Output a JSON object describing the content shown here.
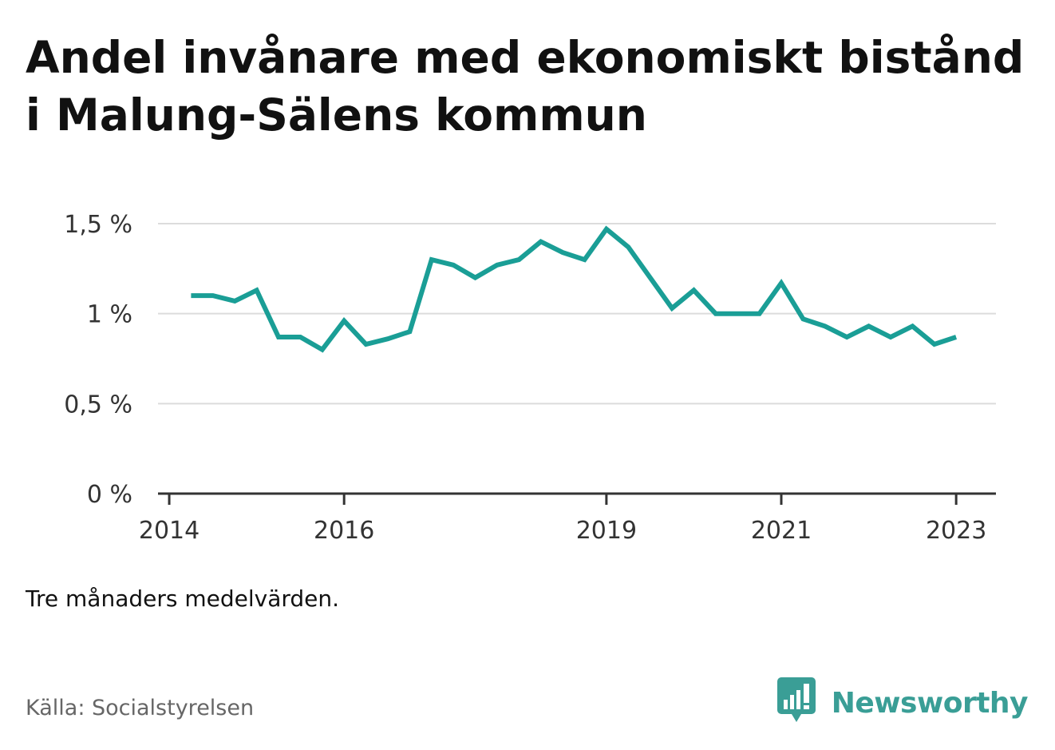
{
  "title": "Andel invånare med ekonomiskt bistånd i Malung-Sälens kommun",
  "note": "Tre månaders medelvärden.",
  "source": "Källa: Socialstyrelsen",
  "brand": {
    "name": "Newsworthy",
    "icon": "newsworthy-logo-icon",
    "color": "#3a9e96"
  },
  "chart_data": {
    "type": "line",
    "title": "Andel invånare med ekonomiskt bistånd i Malung-Sälens kommun",
    "xlabel": "",
    "ylabel": "",
    "ylim": [
      0,
      1.5
    ],
    "xlim": [
      "2013-11-15",
      "2023-06-15"
    ],
    "y_ticks": [
      {
        "value": 0,
        "label": "0 %"
      },
      {
        "value": 0.5,
        "label": "0,5 %"
      },
      {
        "value": 1,
        "label": "1 %"
      },
      {
        "value": 1.5,
        "label": "1,5 %"
      }
    ],
    "x_ticks": [
      {
        "value": "2014-01-01",
        "label": "2014"
      },
      {
        "value": "2016-01-01",
        "label": "2016"
      },
      {
        "value": "2019-01-01",
        "label": "2019"
      },
      {
        "value": "2021-01-01",
        "label": "2021"
      },
      {
        "value": "2023-01-01",
        "label": "2023"
      }
    ],
    "grid": true,
    "line_color": "#1a9e96",
    "series": [
      {
        "x": [
          "2014-04-01",
          "2014-07-01",
          "2014-10-01",
          "2015-01-01",
          "2015-04-01",
          "2015-07-01",
          "2015-10-01",
          "2016-01-01",
          "2016-04-01",
          "2016-07-01",
          "2016-10-01",
          "2017-01-01",
          "2017-04-01",
          "2017-07-01",
          "2017-10-01",
          "2018-01-01",
          "2018-04-01",
          "2018-07-01",
          "2018-10-01",
          "2019-01-01",
          "2019-04-01",
          "2019-07-01",
          "2019-10-01",
          "2020-01-01",
          "2020-04-01",
          "2020-07-01",
          "2020-10-01",
          "2021-01-01",
          "2021-04-01",
          "2021-07-01",
          "2021-10-01",
          "2022-01-01",
          "2022-04-01",
          "2022-07-01",
          "2022-10-01",
          "2023-01-01"
        ],
        "values": [
          1.1,
          1.1,
          1.07,
          1.13,
          0.87,
          0.87,
          0.8,
          0.96,
          0.83,
          0.86,
          0.9,
          1.3,
          1.27,
          1.2,
          1.27,
          1.3,
          1.4,
          1.34,
          1.3,
          1.47,
          1.37,
          1.2,
          1.03,
          1.13,
          1.0,
          1.0,
          1.0,
          1.17,
          0.97,
          0.93,
          0.87,
          0.93,
          0.87,
          0.93,
          0.83,
          0.87
        ]
      }
    ]
  }
}
